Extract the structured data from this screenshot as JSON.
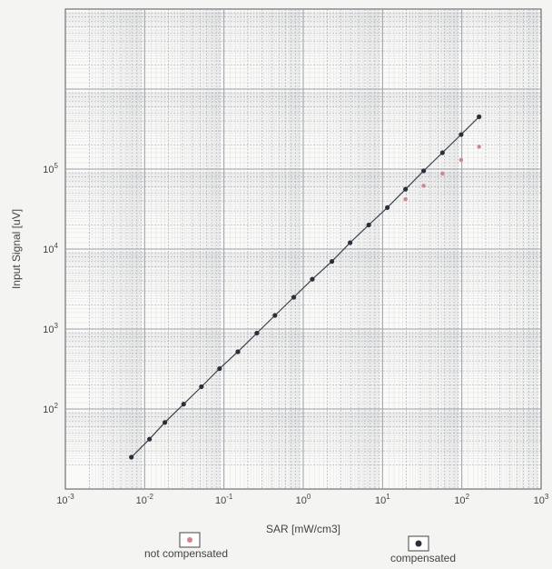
{
  "chart_data": {
    "type": "scatter",
    "x_scale": "log",
    "y_scale": "log",
    "xlim": [
      0.001,
      1000
    ],
    "ylim": [
      10,
      10000000
    ],
    "xlabel": "SAR [mW/cm3]",
    "ylabel": "Input Signal [uV]",
    "x_ticks": [
      {
        "value": 0.001,
        "label_base": "10",
        "label_exp": "-3"
      },
      {
        "value": 0.01,
        "label_base": "10",
        "label_exp": "-2"
      },
      {
        "value": 0.1,
        "label_base": "10",
        "label_exp": "-1"
      },
      {
        "value": 1,
        "label_base": "10",
        "label_exp": "0"
      },
      {
        "value": 10,
        "label_base": "10",
        "label_exp": "1"
      },
      {
        "value": 100,
        "label_base": "10",
        "label_exp": "2"
      },
      {
        "value": 1000,
        "label_base": "10",
        "label_exp": "3"
      }
    ],
    "y_ticks": [
      {
        "value": 100,
        "label_base": "10",
        "label_exp": "2"
      },
      {
        "value": 1000,
        "label_base": "10",
        "label_exp": "3"
      },
      {
        "value": 10000,
        "label_base": "10",
        "label_exp": "4"
      },
      {
        "value": 100000,
        "label_base": "10",
        "label_exp": "5"
      }
    ],
    "grid": true,
    "series": [
      {
        "name": "compensated",
        "color": "#2b2f3a",
        "line": true,
        "x": [
          0.0068,
          0.0115,
          0.018,
          0.031,
          0.052,
          0.088,
          0.15,
          0.26,
          0.44,
          0.76,
          1.3,
          2.3,
          3.9,
          6.7,
          11.5,
          19.5,
          33,
          57,
          98,
          165
        ],
        "y": [
          25,
          42,
          68,
          115,
          190,
          320,
          520,
          890,
          1480,
          2500,
          4200,
          7000,
          12000,
          20000,
          33000,
          56000,
          95000,
          160000,
          270000,
          450000
        ]
      },
      {
        "name": "not compensated",
        "color": "#d4828e",
        "line": false,
        "x": [
          19.5,
          33,
          57,
          98,
          165
        ],
        "y": [
          42000,
          62000,
          88000,
          130000,
          190000
        ]
      }
    ],
    "legend": {
      "placement": "bottom",
      "items": [
        {
          "label": "not compensated",
          "marker_color": "#d4828e"
        },
        {
          "label": "compensated",
          "marker_color": "#2b2f3a"
        }
      ]
    }
  },
  "colors": {
    "background": "#f4f4f2",
    "plot_background": "#fafaf8",
    "grid": "#9a9ea6",
    "axis": "#555555"
  }
}
